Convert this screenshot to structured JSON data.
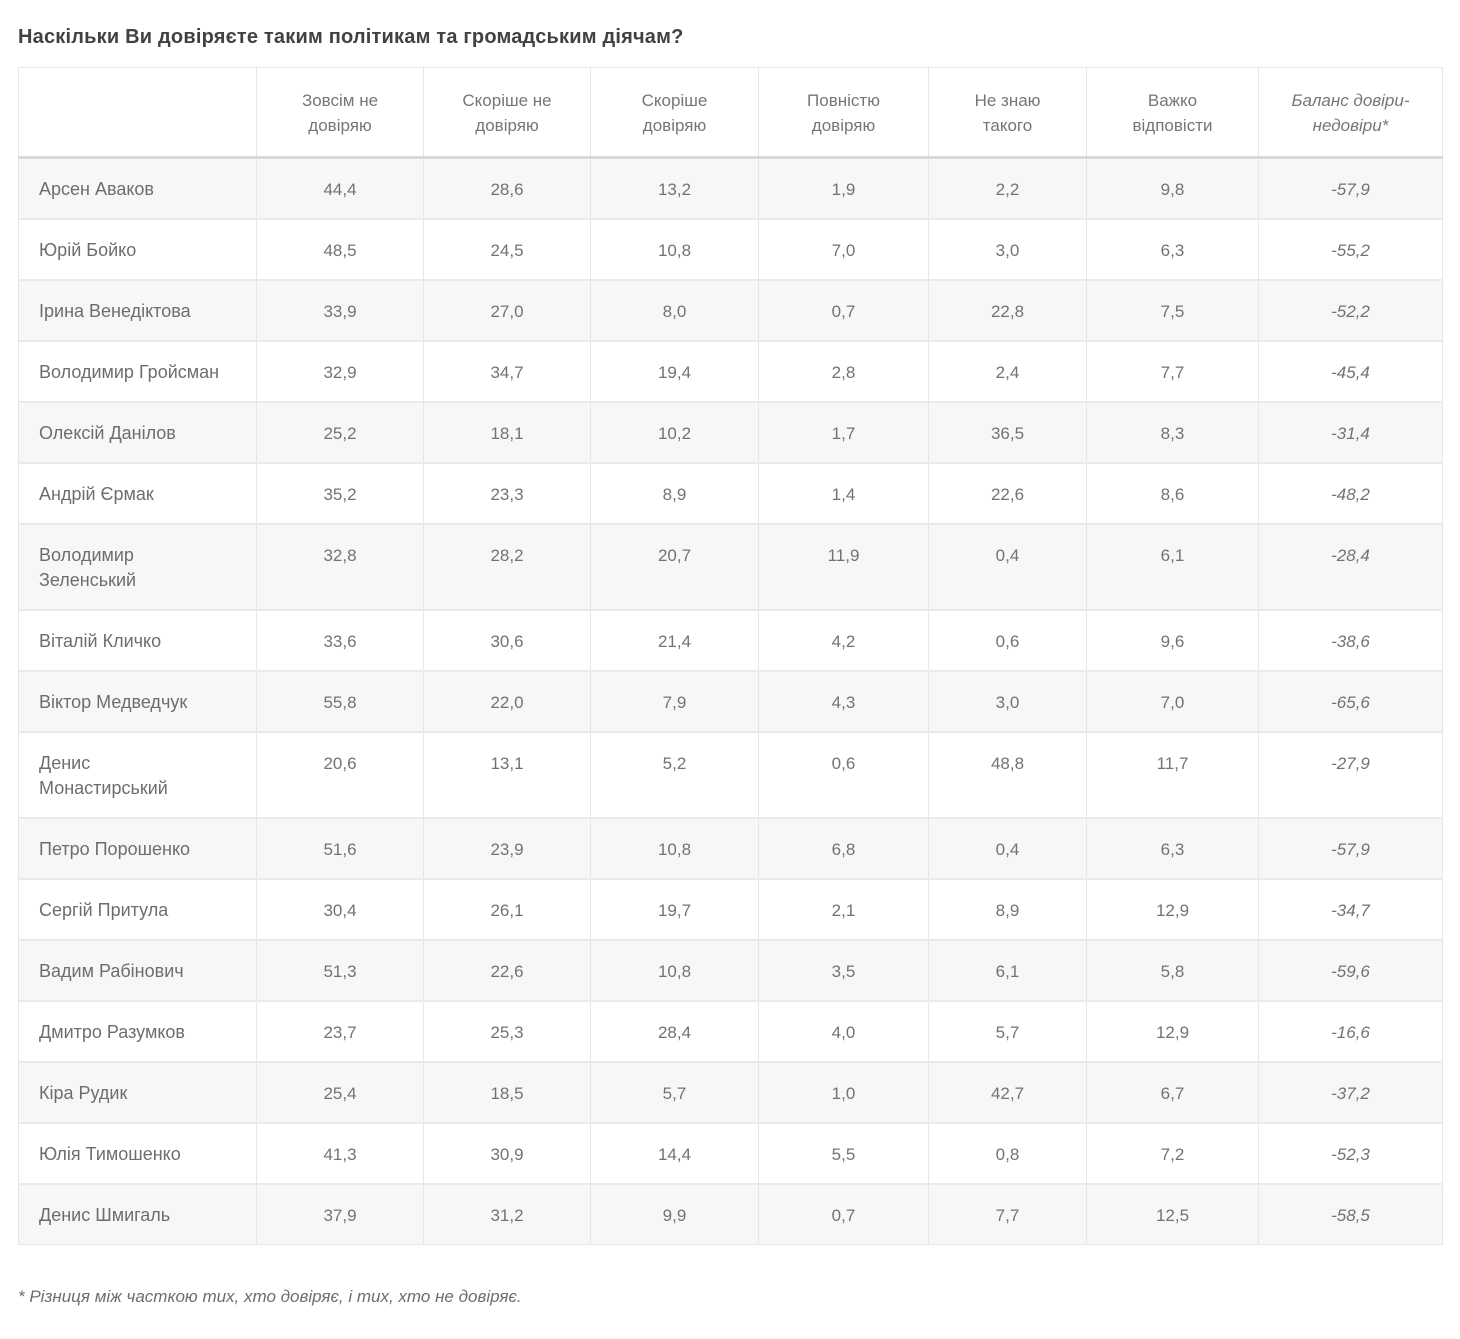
{
  "chart_data": {
    "type": "table",
    "title": "Наскільки Ви довіряєте таким політикам та громадським діячам?",
    "columns": [
      "",
      "Зовсім не довіряю",
      "Скоріше не довіряю",
      "Скоріше довіряю",
      "Повністю довіряю",
      "Не знаю такого",
      "Важко відповісти",
      "Баланс довіри-недовіри*"
    ],
    "rows": [
      {
        "name": "Арсен Аваков",
        "values": [
          "44,4",
          "28,6",
          "13,2",
          "1,9",
          "2,2",
          "9,8",
          "-57,9"
        ]
      },
      {
        "name": "Юрій Бойко",
        "values": [
          "48,5",
          "24,5",
          "10,8",
          "7,0",
          "3,0",
          "6,3",
          "-55,2"
        ]
      },
      {
        "name": "Ірина Венедіктова",
        "values": [
          "33,9",
          "27,0",
          "8,0",
          "0,7",
          "22,8",
          "7,5",
          "-52,2"
        ]
      },
      {
        "name": "Володимир Гройсман",
        "values": [
          "32,9",
          "34,7",
          "19,4",
          "2,8",
          "2,4",
          "7,7",
          "-45,4"
        ]
      },
      {
        "name": "Олексій Данілов",
        "values": [
          "25,2",
          "18,1",
          "10,2",
          "1,7",
          "36,5",
          "8,3",
          "-31,4"
        ]
      },
      {
        "name": "Андрій Єрмак",
        "values": [
          "35,2",
          "23,3",
          "8,9",
          "1,4",
          "22,6",
          "8,6",
          "-48,2"
        ]
      },
      {
        "name": "Володимир Зеленський",
        "values": [
          "32,8",
          "28,2",
          "20,7",
          "11,9",
          "0,4",
          "6,1",
          "-28,4"
        ]
      },
      {
        "name": "Віталій Кличко",
        "values": [
          "33,6",
          "30,6",
          "21,4",
          "4,2",
          "0,6",
          "9,6",
          "-38,6"
        ]
      },
      {
        "name": "Віктор Медведчук",
        "values": [
          "55,8",
          "22,0",
          "7,9",
          "4,3",
          "3,0",
          "7,0",
          "-65,6"
        ]
      },
      {
        "name": "Денис Монастирський",
        "values": [
          "20,6",
          "13,1",
          "5,2",
          "0,6",
          "48,8",
          "11,7",
          "-27,9"
        ]
      },
      {
        "name": "Петро Порошенко",
        "values": [
          "51,6",
          "23,9",
          "10,8",
          "6,8",
          "0,4",
          "6,3",
          "-57,9"
        ]
      },
      {
        "name": "Сергій Притула",
        "values": [
          "30,4",
          "26,1",
          "19,7",
          "2,1",
          "8,9",
          "12,9",
          "-34,7"
        ]
      },
      {
        "name": "Вадим Рабінович",
        "values": [
          "51,3",
          "22,6",
          "10,8",
          "3,5",
          "6,1",
          "5,8",
          "-59,6"
        ]
      },
      {
        "name": "Дмитро Разумков",
        "values": [
          "23,7",
          "25,3",
          "28,4",
          "4,0",
          "5,7",
          "12,9",
          "-16,6"
        ]
      },
      {
        "name": "Кіра Рудик",
        "values": [
          "25,4",
          "18,5",
          "5,7",
          "1,0",
          "42,7",
          "6,7",
          "-37,2"
        ]
      },
      {
        "name": "Юлія Тимошенко",
        "values": [
          "41,3",
          "30,9",
          "14,4",
          "5,5",
          "0,8",
          "7,2",
          "-52,3"
        ]
      },
      {
        "name": "Денис Шмигаль",
        "values": [
          "37,9",
          "31,2",
          "9,9",
          "0,7",
          "7,7",
          "12,5",
          "-58,5"
        ]
      }
    ],
    "footnote": "* Різниця між часткою тих, хто довіряє, і тих, хто не довіряє.",
    "number_format": "comma-decimal",
    "colors": {
      "row_stripe": "#f7f7f7",
      "border": "#e6e6e6",
      "cell_text": "#707376",
      "title_text": "#3f4244"
    },
    "layout": {
      "grid": true,
      "striped_rows": "odd",
      "balance_column_style": "italic"
    }
  }
}
